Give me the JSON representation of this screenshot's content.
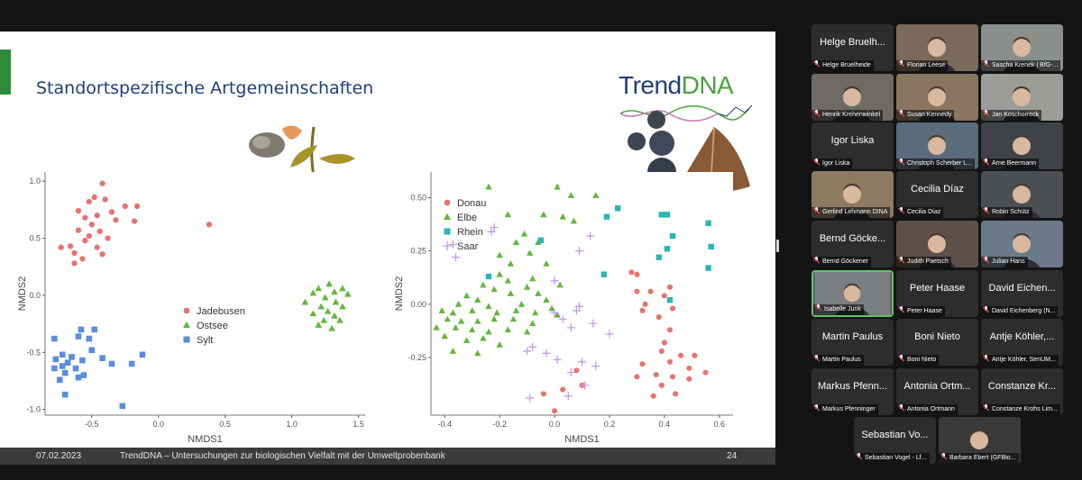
{
  "slide": {
    "title": "Standortspezifische Artgemeinschaften",
    "logo": {
      "part1": "Trend",
      "part2": "DNA"
    },
    "footer": {
      "date": "07.02.2023",
      "title": "TrendDNA – Untersuchungen zur biologischen Vielfalt mit der Umweltprobenbank",
      "page": "24"
    }
  },
  "colors": {
    "red": "#e8736b",
    "green": "#5fb83b",
    "blue": "#5b8de0",
    "teal": "#2bb5b5",
    "purple": "#c39bea",
    "title": "#1f3f7a"
  },
  "chart_data": [
    {
      "type": "scatter",
      "xlabel": "NMDS1",
      "ylabel": "NMDS2",
      "xlim": [
        -0.85,
        1.55
      ],
      "ylim": [
        -1.05,
        1.08
      ],
      "xticks": [
        -0.5,
        0.0,
        0.5,
        1.0,
        1.5
      ],
      "xtick_labels": [
        "-0.5",
        "0.0",
        "0.5",
        "1.0",
        "1.5"
      ],
      "yticks": [
        -1.0,
        -0.5,
        0.0,
        0.5,
        1.0
      ],
      "ytick_labels": [
        "-1.0",
        "-0.5",
        "0.0",
        "0.5",
        "1.0"
      ],
      "legend_position": "center",
      "series": [
        {
          "name": "Jadebusen",
          "marker": "circle",
          "color": "#e8736b",
          "points": [
            [
              -0.42,
              0.98
            ],
            [
              -0.48,
              0.86
            ],
            [
              -0.4,
              0.84
            ],
            [
              -0.52,
              0.82
            ],
            [
              -0.25,
              0.78
            ],
            [
              -0.16,
              0.78
            ],
            [
              -0.6,
              0.74
            ],
            [
              -0.35,
              0.73
            ],
            [
              -0.46,
              0.7
            ],
            [
              -0.55,
              0.68
            ],
            [
              -0.5,
              0.62
            ],
            [
              -0.32,
              0.66
            ],
            [
              -0.18,
              0.65
            ],
            [
              -0.6,
              0.57
            ],
            [
              -0.44,
              0.56
            ],
            [
              -0.52,
              0.52
            ],
            [
              -0.38,
              0.5
            ],
            [
              -0.55,
              0.48
            ],
            [
              -0.66,
              0.43
            ],
            [
              -0.46,
              0.42
            ],
            [
              -0.73,
              0.42
            ],
            [
              -0.63,
              0.37
            ],
            [
              -0.42,
              0.36
            ],
            [
              -0.57,
              0.32
            ],
            [
              -0.63,
              0.28
            ],
            [
              0.38,
              0.62
            ]
          ]
        },
        {
          "name": "Ostsee",
          "marker": "triangle",
          "color": "#5fb83b",
          "points": [
            [
              1.28,
              0.1
            ],
            [
              1.2,
              0.06
            ],
            [
              1.38,
              0.06
            ],
            [
              1.16,
              0.02
            ],
            [
              1.32,
              0.03
            ],
            [
              1.42,
              0.01
            ],
            [
              1.25,
              -0.02
            ],
            [
              1.1,
              -0.06
            ],
            [
              1.33,
              -0.06
            ],
            [
              1.22,
              -0.1
            ],
            [
              1.38,
              -0.1
            ],
            [
              1.27,
              -0.14
            ],
            [
              1.16,
              -0.16
            ],
            [
              1.32,
              -0.18
            ],
            [
              1.24,
              -0.22
            ],
            [
              1.36,
              -0.22
            ],
            [
              1.2,
              -0.26
            ],
            [
              1.3,
              -0.29
            ]
          ]
        },
        {
          "name": "Sylt",
          "marker": "square",
          "color": "#5b8de0",
          "points": [
            [
              -0.58,
              -0.3
            ],
            [
              -0.48,
              -0.3
            ],
            [
              -0.6,
              -0.36
            ],
            [
              -0.52,
              -0.38
            ],
            [
              -0.78,
              -0.38
            ],
            [
              -0.5,
              -0.48
            ],
            [
              -0.72,
              -0.52
            ],
            [
              -0.65,
              -0.54
            ],
            [
              -0.42,
              -0.55
            ],
            [
              -0.77,
              -0.56
            ],
            [
              -0.57,
              -0.57
            ],
            [
              -0.68,
              -0.59
            ],
            [
              -0.72,
              -0.62
            ],
            [
              -0.62,
              -0.64
            ],
            [
              -0.35,
              -0.6
            ],
            [
              -0.12,
              -0.52
            ],
            [
              -0.2,
              -0.6
            ],
            [
              -0.78,
              -0.64
            ],
            [
              -0.7,
              -0.68
            ],
            [
              -0.6,
              -0.72
            ],
            [
              -0.74,
              -0.74
            ],
            [
              -0.56,
              -0.7
            ],
            [
              -0.7,
              -0.87
            ],
            [
              -0.27,
              -0.97
            ]
          ]
        }
      ]
    },
    {
      "type": "scatter",
      "xlabel": "NMDS1",
      "ylabel": "NMDS2",
      "xlim": [
        -0.45,
        0.65
      ],
      "ylim": [
        -0.52,
        0.62
      ],
      "xticks": [
        -0.4,
        -0.2,
        0.0,
        0.2,
        0.4,
        0.6
      ],
      "xtick_labels": [
        "-0.4",
        "-0.2",
        "0.0",
        "0.2",
        "0.4",
        "0.6"
      ],
      "yticks": [
        -0.25,
        0.0,
        0.25,
        0.5
      ],
      "ytick_labels": [
        "-0.25",
        "0.00",
        "0.25",
        "0.50"
      ],
      "legend_position": "top-left",
      "series": [
        {
          "name": "Donau",
          "marker": "circle",
          "color": "#e8736b",
          "points": [
            [
              0.28,
              0.15
            ],
            [
              0.3,
              0.14
            ],
            [
              0.35,
              0.06
            ],
            [
              0.42,
              0.08
            ],
            [
              0.3,
              0.06
            ],
            [
              0.4,
              0.04
            ],
            [
              0.33,
              0.0
            ],
            [
              0.32,
              -0.03
            ],
            [
              0.43,
              -0.02
            ],
            [
              0.38,
              -0.06
            ],
            [
              0.42,
              -0.12
            ],
            [
              0.4,
              -0.18
            ],
            [
              0.39,
              -0.22
            ],
            [
              0.46,
              -0.24
            ],
            [
              0.51,
              -0.24
            ],
            [
              0.32,
              -0.28
            ],
            [
              0.42,
              -0.27
            ],
            [
              0.49,
              -0.3
            ],
            [
              0.55,
              -0.32
            ],
            [
              0.3,
              -0.34
            ],
            [
              0.37,
              -0.33
            ],
            [
              0.43,
              -0.34
            ],
            [
              0.49,
              -0.35
            ],
            [
              0.39,
              -0.38
            ],
            [
              0.44,
              -0.42
            ],
            [
              0.36,
              -0.43
            ],
            [
              0.08,
              -0.31
            ],
            [
              0.1,
              -0.38
            ],
            [
              0.03,
              -0.4
            ],
            [
              -0.04,
              -0.42
            ],
            [
              0.0,
              -0.5
            ]
          ]
        },
        {
          "name": "Elbe",
          "marker": "triangle",
          "color": "#5fb83b",
          "points": [
            [
              -0.24,
              0.55
            ],
            [
              0.01,
              0.55
            ],
            [
              0.06,
              0.51
            ],
            [
              0.15,
              0.51
            ],
            [
              0.03,
              0.41
            ],
            [
              -0.17,
              0.42
            ],
            [
              -0.04,
              0.42
            ],
            [
              0.07,
              0.39
            ],
            [
              -0.11,
              0.33
            ],
            [
              -0.14,
              0.29
            ],
            [
              -0.06,
              0.29
            ],
            [
              -0.2,
              0.23
            ],
            [
              -0.09,
              0.24
            ],
            [
              -0.16,
              0.19
            ],
            [
              -0.03,
              0.19
            ],
            [
              -0.2,
              0.14
            ],
            [
              -0.17,
              0.11
            ],
            [
              -0.08,
              0.12
            ],
            [
              -0.26,
              0.09
            ],
            [
              -0.22,
              0.07
            ],
            [
              -0.1,
              0.08
            ],
            [
              0.02,
              0.09
            ],
            [
              -0.32,
              0.04
            ],
            [
              -0.28,
              0.02
            ],
            [
              -0.16,
              0.05
            ],
            [
              -0.06,
              0.05
            ],
            [
              -0.35,
              0.0
            ],
            [
              -0.24,
              -0.01
            ],
            [
              -0.12,
              0.0
            ],
            [
              -0.03,
              0.02
            ],
            [
              -0.41,
              -0.03
            ],
            [
              -0.37,
              -0.04
            ],
            [
              -0.3,
              -0.03
            ],
            [
              -0.21,
              -0.04
            ],
            [
              -0.14,
              -0.03
            ],
            [
              -0.07,
              -0.04
            ],
            [
              -0.01,
              -0.02
            ],
            [
              0.01,
              -0.05
            ],
            [
              -0.39,
              -0.07
            ],
            [
              -0.34,
              -0.08
            ],
            [
              -0.28,
              -0.08
            ],
            [
              -0.22,
              -0.07
            ],
            [
              -0.15,
              -0.07
            ],
            [
              -0.08,
              -0.09
            ],
            [
              -0.43,
              -0.11
            ],
            [
              -0.36,
              -0.11
            ],
            [
              -0.3,
              -0.12
            ],
            [
              -0.24,
              -0.13
            ],
            [
              -0.17,
              -0.12
            ],
            [
              -0.1,
              -0.13
            ],
            [
              -0.4,
              -0.15
            ],
            [
              -0.32,
              -0.17
            ],
            [
              -0.26,
              -0.16
            ],
            [
              -0.2,
              -0.19
            ],
            [
              -0.37,
              -0.22
            ],
            [
              -0.28,
              -0.23
            ]
          ]
        },
        {
          "name": "Rhein",
          "marker": "square",
          "color": "#2bb5b5",
          "points": [
            [
              0.23,
              0.45
            ],
            [
              0.19,
              0.41
            ],
            [
              0.39,
              0.42
            ],
            [
              0.41,
              0.42
            ],
            [
              0.56,
              0.38
            ],
            [
              0.43,
              0.32
            ],
            [
              0.57,
              0.27
            ],
            [
              0.41,
              0.26
            ],
            [
              0.38,
              0.22
            ],
            [
              -0.05,
              0.3
            ],
            [
              -0.24,
              0.13
            ],
            [
              0.18,
              0.14
            ],
            [
              0.56,
              0.17
            ],
            [
              0.42,
              0.02
            ]
          ]
        },
        {
          "name": "Saar",
          "marker": "plus",
          "color": "#c39bea",
          "points": [
            [
              -0.37,
              0.28
            ],
            [
              -0.36,
              0.22
            ],
            [
              -0.22,
              0.36
            ],
            [
              -0.23,
              0.34
            ],
            [
              0.13,
              0.32
            ],
            [
              0.09,
              0.25
            ],
            [
              0.0,
              0.11
            ],
            [
              0.09,
              -0.01
            ],
            [
              0.08,
              -0.03
            ],
            [
              0.0,
              -0.04
            ],
            [
              0.03,
              -0.07
            ],
            [
              0.14,
              -0.09
            ],
            [
              0.06,
              -0.11
            ],
            [
              0.2,
              -0.14
            ],
            [
              -0.08,
              -0.2
            ],
            [
              -0.1,
              -0.22
            ],
            [
              -0.03,
              -0.23
            ],
            [
              0.01,
              -0.26
            ],
            [
              0.1,
              -0.27
            ],
            [
              0.15,
              -0.29
            ],
            [
              0.06,
              -0.32
            ],
            [
              0.11,
              -0.38
            ],
            [
              -0.09,
              -0.44
            ],
            [
              0.05,
              -0.43
            ]
          ]
        }
      ]
    }
  ],
  "participants": [
    {
      "name": "Helge Bruelheide",
      "big": "Helge Bruelh...",
      "video": false
    },
    {
      "name": "Florian Leese",
      "video": true,
      "tone": "#7b6a5a"
    },
    {
      "name": "Sascha Krenek | BfG-...",
      "video": true,
      "tone": "#8a8f8c"
    },
    {
      "name": "Henrik Krehenwinkel",
      "video": true,
      "tone": "#6e6a66"
    },
    {
      "name": "Susan Kennedy",
      "video": true,
      "tone": "#8a7560"
    },
    {
      "name": "Jan Koschorreck",
      "video": true,
      "tone": "#9c9c98"
    },
    {
      "name": "Igor Liska",
      "big": "Igor Liska",
      "video": false
    },
    {
      "name": "Christoph Scherber L...",
      "video": true,
      "tone": "#5a6b7c"
    },
    {
      "name": "Arne Beermann",
      "video": true,
      "tone": "#3f4348"
    },
    {
      "name": "Gerlind Lehmann DINA",
      "video": true,
      "tone": "#8c7a62"
    },
    {
      "name": "Cecilia Díaz",
      "big": "Cecilia Díaz",
      "video": false
    },
    {
      "name": "Robin Schütz",
      "video": true,
      "tone": "#4b4e52"
    },
    {
      "name": "Bernd Göckener",
      "big": "Bernd Göcke...",
      "video": false
    },
    {
      "name": "Judith Paetsch",
      "video": true,
      "tone": "#5c5048"
    },
    {
      "name": "Julian Hans",
      "video": true,
      "tone": "#6a7a88"
    },
    {
      "name": "Isabelle Junk",
      "video": true,
      "tone": "#7a7e80",
      "active": true
    },
    {
      "name": "Peter Haase",
      "big": "Peter Haase",
      "video": false
    },
    {
      "name": "David Eichenberg (N...",
      "big": "David Eichen...",
      "video": false
    },
    {
      "name": "Martin Paulus",
      "big": "Martin Paulus",
      "video": false
    },
    {
      "name": "Boni Nieto",
      "big": "Boni Nieto",
      "video": false
    },
    {
      "name": "Antje Köhler, SenUM...",
      "big": "Antje Köhler,...",
      "video": false
    },
    {
      "name": "Markus Pfenninger",
      "big": "Markus Pfenn...",
      "video": false
    },
    {
      "name": "Antonia Ortmann",
      "big": "Antonia Ortm...",
      "video": false
    },
    {
      "name": "Constanze Krohs Lim...",
      "big": "Constanze Kr...",
      "video": false
    },
    {
      "name": "Sebastian Vogel - Lf...",
      "big": "Sebastian Vo...",
      "video": false
    },
    {
      "name": "Barbara Ebert (GFBio...",
      "video": true,
      "tone": "#3a3a3a"
    }
  ]
}
